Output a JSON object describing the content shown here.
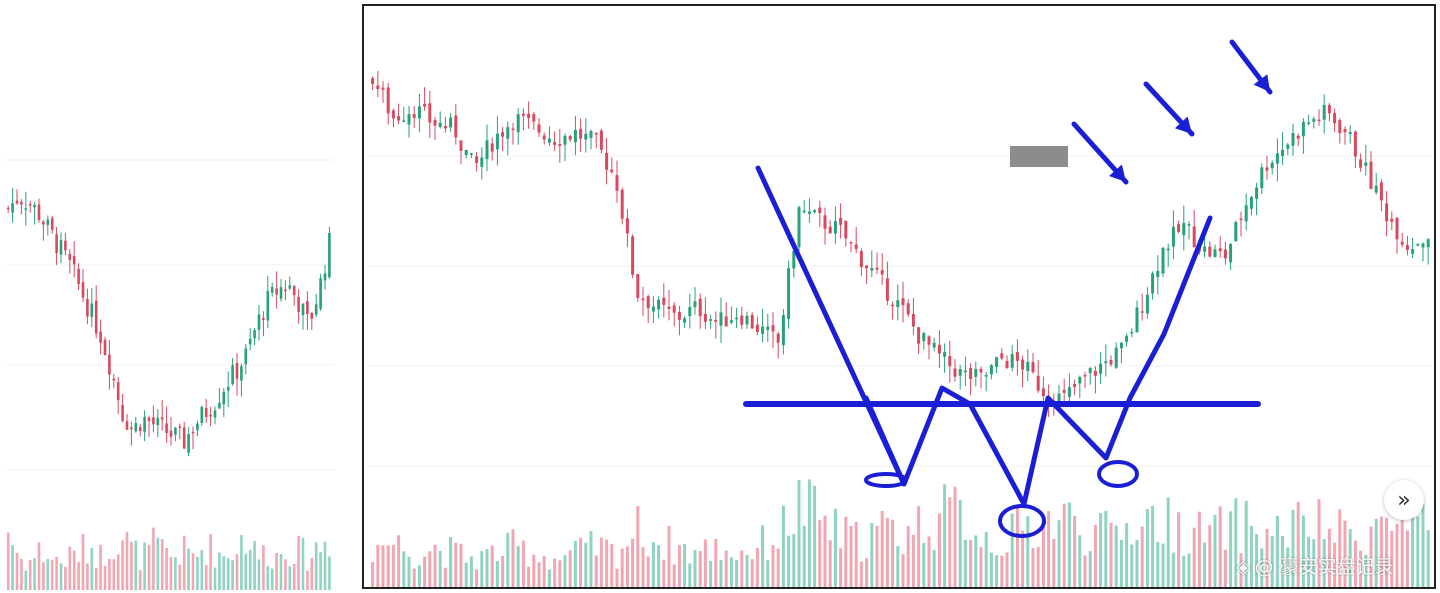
{
  "colors": {
    "up": "#26a17b",
    "down": "#d8495f",
    "vol_up": "#8fd3c0",
    "vol_down": "#f2a6b2",
    "annotation": "#1a1fd6",
    "gray_box": "#8c8c8c"
  },
  "next_button": {
    "icon": "chevron-double-right-icon",
    "label": "»"
  },
  "watermark": {
    "icon": "diamond-logo-icon",
    "text": "@ 豪安实盘记录"
  },
  "chart_data": [
    {
      "type": "candlestick",
      "title": "",
      "xlabel": "",
      "ylabel": "",
      "grid": true,
      "close_path": [
        80,
        82,
        81,
        79,
        76,
        73,
        70,
        66,
        62,
        58,
        52,
        45,
        42,
        44,
        43,
        42,
        41,
        40,
        43,
        45,
        47,
        50,
        52,
        55,
        60,
        64,
        66,
        67,
        64,
        60,
        66,
        74
      ],
      "volume_path": [
        0.55,
        0.3,
        0.25,
        0.35,
        0.3,
        0.25,
        0.3,
        0.35,
        0.4,
        0.3,
        0.45,
        0.5,
        0.35,
        0.3,
        0.4,
        0.35,
        0.3,
        0.35,
        0.3,
        0.4,
        0.35,
        0.3,
        0.4,
        0.5,
        0.3,
        0.35,
        0.3,
        0.4,
        0.35,
        0.3,
        0.4,
        0.45
      ]
    },
    {
      "type": "candlestick",
      "title": "",
      "xlabel": "",
      "ylabel": "",
      "grid": true,
      "close_path": [
        92,
        84,
        86,
        83,
        82,
        74,
        80,
        84,
        82,
        80,
        81,
        79,
        72,
        50,
        47,
        45,
        47,
        44,
        46,
        43,
        40,
        66,
        64,
        62,
        57,
        52,
        47,
        41,
        37,
        34,
        33,
        37,
        36,
        31,
        29,
        33,
        36,
        39,
        49,
        59,
        63,
        58,
        57,
        67,
        75,
        79,
        83,
        85,
        81,
        73,
        65,
        59,
        61
      ],
      "volume_path": [
        0.35,
        0.4,
        0.3,
        0.35,
        0.3,
        0.25,
        0.3,
        0.35,
        0.3,
        0.25,
        0.3,
        0.35,
        0.3,
        0.5,
        0.4,
        0.35,
        0.3,
        0.35,
        0.3,
        0.35,
        0.45,
        0.7,
        0.6,
        0.45,
        0.4,
        0.5,
        0.45,
        0.55,
        0.6,
        0.65,
        0.45,
        0.4,
        0.5,
        0.55,
        0.6,
        0.5,
        0.45,
        0.5,
        0.6,
        0.55,
        0.5,
        0.45,
        0.5,
        0.55,
        0.45,
        0.5,
        0.55,
        0.5,
        0.45,
        0.5,
        0.55,
        0.5,
        0.5
      ],
      "annotations": [
        {
          "type": "descending-line",
          "name": "left-leg"
        },
        {
          "type": "horizontal-line",
          "name": "neckline"
        },
        {
          "type": "zigzag",
          "name": "triple-bottom"
        },
        {
          "type": "ascending-line",
          "name": "right-leg"
        },
        {
          "type": "circle",
          "name": "bottom-markers"
        },
        {
          "type": "arrows",
          "count": 3,
          "direction": "down-right"
        },
        {
          "type": "box",
          "name": "gray-box"
        }
      ]
    }
  ]
}
